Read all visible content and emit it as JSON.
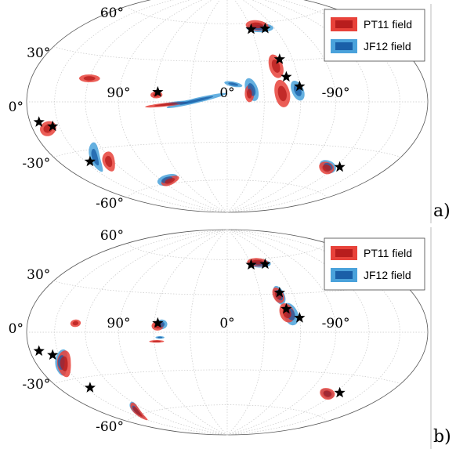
{
  "colors": {
    "pt11_outer": "#e8423a",
    "pt11_inner": "#b81d1d",
    "jf12_outer": "#4aa2db",
    "jf12_inner": "#1a5fa8",
    "overlap": "#6c3a6e",
    "grid": "#c8c8c8"
  },
  "chart_data": [
    {
      "panel_label": "a)",
      "type": "scatter",
      "projection": "hammer-aitoff",
      "lon_range": [
        180,
        -180
      ],
      "lat_range": [
        -90,
        90
      ],
      "lon_tick_labels": [
        "90°",
        "0°",
        "-90°"
      ],
      "lat_tick_labels": [
        "60°",
        "30°",
        "0°",
        "-30°",
        "-60°"
      ],
      "grid": true,
      "legend": {
        "position": "top-right",
        "items": [
          "PT11 field",
          "JF12 field"
        ]
      },
      "sources": [
        {
          "lon": -30,
          "lat": 55
        },
        {
          "lon": -48,
          "lat": 55
        },
        {
          "lon": -48,
          "lat": 31
        },
        {
          "lon": -50,
          "lat": 18
        },
        {
          "lon": -60,
          "lat": 11
        },
        {
          "lon": 57,
          "lat": 7
        },
        {
          "lon": 170,
          "lat": -11
        },
        {
          "lon": 157,
          "lat": -14
        },
        {
          "lon": 145,
          "lat": -37
        },
        {
          "lon": -125,
          "lat": -43
        }
      ],
      "regions": [
        {
          "field": "PT11",
          "lon": -40,
          "lat": 58,
          "rx": 12,
          "ry": 3.5,
          "rot": 0
        },
        {
          "field": "JF12",
          "lon": -42,
          "lat": 56,
          "rx": 14,
          "ry": 3,
          "rot": 0
        },
        {
          "field": "PT11",
          "lon": -43,
          "lat": 26,
          "rx": 5,
          "ry": 7,
          "rot": 0
        },
        {
          "field": "PT11",
          "lon": -45,
          "lat": 6,
          "rx": 5,
          "ry": 8,
          "rot": -10
        },
        {
          "field": "JF12",
          "lon": -58,
          "lat": 8,
          "rx": 4,
          "ry": 6,
          "rot": -25
        },
        {
          "field": "PT11",
          "lon": -18,
          "lat": 6,
          "rx": 3,
          "ry": 5,
          "rot": 0
        },
        {
          "field": "JF12",
          "lon": -20,
          "lat": 9,
          "rx": 4,
          "ry": 7,
          "rot": -20
        },
        {
          "field": "JF12",
          "lon": -5,
          "lat": 13,
          "rx": 6,
          "ry": 1.5,
          "rot": 10
        },
        {
          "field": "JF12",
          "lon": 25,
          "lat": 1,
          "rx": 20,
          "ry": 1.5,
          "rot": -12
        },
        {
          "field": "JF12",
          "lon": 40,
          "lat": -1,
          "rx": 12,
          "ry": 1.2,
          "rot": -5
        },
        {
          "field": "PT11",
          "lon": 50,
          "lat": -2,
          "rx": 14,
          "ry": 1,
          "rot": -5
        },
        {
          "field": "PT11",
          "lon": 58,
          "lat": 5,
          "rx": 4,
          "ry": 2,
          "rot": 0
        },
        {
          "field": "PT11",
          "lon": 120,
          "lat": 15,
          "rx": 8,
          "ry": 2,
          "rot": 0
        },
        {
          "field": "PT11",
          "lon": 163,
          "lat": -15,
          "rx": 8,
          "ry": 3,
          "rot": -10
        },
        {
          "field": "JF12",
          "lon": 135,
          "lat": -35,
          "rx": 12,
          "ry": 3,
          "rot": -35
        },
        {
          "field": "PT11",
          "lon": 125,
          "lat": -39,
          "rx": 10,
          "ry": 3,
          "rot": -25
        },
        {
          "field": "PT11",
          "lon": 80,
          "lat": -58,
          "rx": 14,
          "ry": 2,
          "rot": -8
        },
        {
          "field": "JF12",
          "lon": 82,
          "lat": -57,
          "rx": 15,
          "ry": 2.5,
          "rot": -8
        },
        {
          "field": "PT11",
          "lon": -112,
          "lat": -45,
          "rx": 10,
          "ry": 2.5,
          "rot": 12
        },
        {
          "field": "JF12",
          "lon": -112,
          "lat": -44,
          "rx": 11,
          "ry": 2.5,
          "rot": 12
        }
      ]
    },
    {
      "panel_label": "b)",
      "type": "scatter",
      "projection": "hammer-aitoff",
      "lon_range": [
        180,
        -180
      ],
      "lat_range": [
        -90,
        90
      ],
      "lon_tick_labels": [
        "90°",
        "0°",
        "-90°"
      ],
      "lat_tick_labels": [
        "60°",
        "30°",
        "0°",
        "-30°",
        "-60°"
      ],
      "grid": true,
      "legend": {
        "position": "top-right",
        "items": [
          "PT11 field",
          "JF12 field"
        ]
      },
      "sources": [
        {
          "lon": -30,
          "lat": 55
        },
        {
          "lon": -48,
          "lat": 55
        },
        {
          "lon": -48,
          "lat": 31
        },
        {
          "lon": -50,
          "lat": 18
        },
        {
          "lon": -60,
          "lat": 11
        },
        {
          "lon": 57,
          "lat": 7
        },
        {
          "lon": 170,
          "lat": -11
        },
        {
          "lon": 157,
          "lat": -14
        },
        {
          "lon": 145,
          "lat": -37
        },
        {
          "lon": -125,
          "lat": -43
        }
      ],
      "regions": [
        {
          "field": "PT11",
          "lon": -40,
          "lat": 57,
          "rx": 11,
          "ry": 3,
          "rot": 0
        },
        {
          "field": "JF12",
          "lon": -41,
          "lat": 56,
          "rx": 12,
          "ry": 3,
          "rot": 0
        },
        {
          "field": "PT11",
          "lon": -46,
          "lat": 29,
          "rx": 4,
          "ry": 5,
          "rot": 0
        },
        {
          "field": "JF12",
          "lon": -47,
          "lat": 29,
          "rx": 4,
          "ry": 6,
          "rot": 0
        },
        {
          "field": "PT11",
          "lon": -50,
          "lat": 15,
          "rx": 5,
          "ry": 6,
          "rot": -10
        },
        {
          "field": "JF12",
          "lon": -53,
          "lat": 14,
          "rx": 5,
          "ry": 7,
          "rot": -10
        },
        {
          "field": "PT11",
          "lon": 57,
          "lat": 5,
          "rx": 4,
          "ry": 3,
          "rot": 0
        },
        {
          "field": "JF12",
          "lon": 54,
          "lat": 6,
          "rx": 4,
          "ry": 3,
          "rot": 0
        },
        {
          "field": "JF12",
          "lon": 55,
          "lat": -4,
          "rx": 3,
          "ry": 0.8,
          "rot": 0
        },
        {
          "field": "PT11",
          "lon": 58,
          "lat": -7,
          "rx": 5,
          "ry": 0.8,
          "rot": 0
        },
        {
          "field": "PT11",
          "lon": 130,
          "lat": 6,
          "rx": 4,
          "ry": 2,
          "rot": 0
        },
        {
          "field": "PT11",
          "lon": 150,
          "lat": -20,
          "rx": 10,
          "ry": 4,
          "rot": -35
        },
        {
          "field": "JF12",
          "lon": 152,
          "lat": -19,
          "rx": 10,
          "ry": 3.5,
          "rot": -35
        },
        {
          "field": "PT11",
          "lon": 136,
          "lat": -58,
          "rx": 14,
          "ry": 2,
          "rot": -20
        },
        {
          "field": "JF12",
          "lon": 134,
          "lat": -57,
          "rx": 13,
          "ry": 2,
          "rot": -20
        },
        {
          "field": "PT11",
          "lon": -113,
          "lat": -45,
          "rx": 10,
          "ry": 2.5,
          "rot": 12
        },
        {
          "field": "JF12",
          "lon": -113,
          "lat": -45,
          "rx": 9,
          "ry": 2,
          "rot": 12
        }
      ]
    }
  ]
}
